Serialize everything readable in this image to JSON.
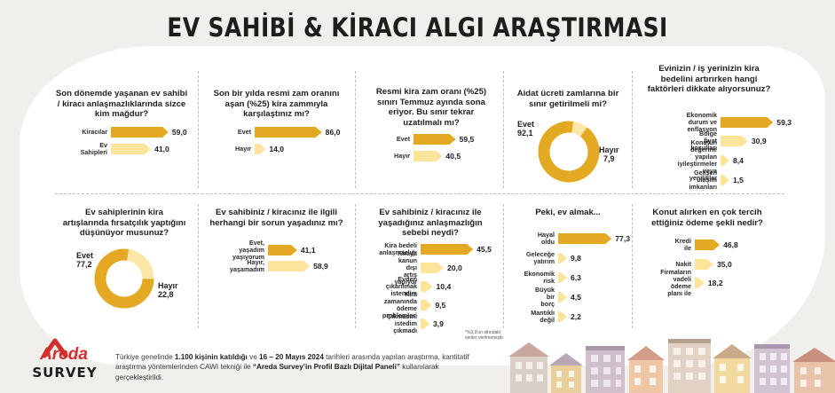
{
  "title": "EV SAHİBİ & KİRACI ALGI ARAŞTIRMASI",
  "colors": {
    "dark": "#e3a923",
    "light": "#fce49a",
    "donut_light": "#fde7a8"
  },
  "chart_data": [
    {
      "type": "bar",
      "title": "Son dönemde yaşanan ev sahibi / kiracı anlaşmazlıklarında sizce kim mağdur?",
      "categories": [
        "Kiracılar",
        "Ev Sahipleri"
      ],
      "values": [
        59.0,
        41.0
      ],
      "labels": [
        "59,0",
        "41,0"
      ],
      "xlim": [
        0,
        100
      ]
    },
    {
      "type": "bar",
      "title": "Son bir yılda resmi zam oranını aşan (%25) kira zammıyla karşılaştınız mı?",
      "categories": [
        "Evet",
        "Hayır"
      ],
      "values": [
        86.0,
        14.0
      ],
      "labels": [
        "86,0",
        "14,0"
      ],
      "xlim": [
        0,
        100
      ]
    },
    {
      "type": "bar",
      "title": "Resmi kira zam oranı (%25) sınırı Temmuz ayında sona eriyor. Bu sınır tekrar uzatılmalı mı?",
      "categories": [
        "Evet",
        "Hayır"
      ],
      "values": [
        59.5,
        40.5
      ],
      "labels": [
        "59,5",
        "40,5"
      ],
      "xlim": [
        0,
        100
      ]
    },
    {
      "type": "pie",
      "title": "Aidat ücreti zamlarına bir sınır getirilmeli mi?",
      "categories": [
        "Evet",
        "Hayır"
      ],
      "values": [
        92.1,
        7.9
      ],
      "labels": [
        "92,1",
        "7,9"
      ]
    },
    {
      "type": "bar",
      "title": "Evinizin / iş yerinizin kira bedelini artırırken hangi faktörleri dikkate alıyorsunuz?",
      "categories": [
        "Ekonomik durum ve enflasyon",
        "Bölge fiyat koşulları",
        "Konutun değerine yapılan iyileştirmeler veya yenilikler",
        "Gelişen ulaşım imkanları"
      ],
      "values": [
        59.3,
        30.9,
        8.4,
        1.5
      ],
      "labels": [
        "59,3",
        "30,9",
        "8,4",
        "1,5"
      ],
      "xlim": [
        0,
        100
      ]
    },
    {
      "type": "pie",
      "title": "Ev sahiplerinin kira artışlarında fırsatçılık yaptığını düşünüyor musunuz?",
      "categories": [
        "Evet",
        "Hayır"
      ],
      "values": [
        77.2,
        22.8
      ],
      "labels": [
        "77,2",
        "22,8"
      ]
    },
    {
      "type": "bar",
      "title": "Ev sahibiniz / kiracınız ile ilgili herhangi bir sorun yaşadınız mı?",
      "categories": [
        "Evet, yaşadım yaşıyorum",
        "Hayır, yaşamadım"
      ],
      "values": [
        41.1,
        58.9
      ],
      "labels": [
        "41,1",
        "58,9"
      ],
      "xlim": [
        0,
        100
      ]
    },
    {
      "type": "bar",
      "title": "Ev sahibiniz / kiracınız ile yaşadığınız anlaşmazlığın sebebi neydi?",
      "categories": [
        "Kira bedeli anlaşmazlığı",
        "Kiraya kanun dışı artış yapıyor",
        "Evden çıkarılmak istendim",
        "Kira zamanında ödeme problemleri",
        "Çıkmasını istedim çıkmadı"
      ],
      "values": [
        45.5,
        20.0,
        10.4,
        9.5,
        3.9
      ],
      "labels": [
        "45,5",
        "20,0",
        "10,4",
        "9,5",
        "3,9"
      ],
      "note": "*%3,9'un altındaki veriler verilmemiştir.",
      "xlim": [
        0,
        100
      ]
    },
    {
      "type": "bar",
      "title": "Peki, ev almak...",
      "categories": [
        "Hayal oldu",
        "Geleceğe yatırım",
        "Ekonomik risk",
        "Büyük bir borç",
        "Mantıklı değil"
      ],
      "values": [
        77.3,
        9.8,
        6.3,
        4.5,
        2.2
      ],
      "labels": [
        "77,3",
        "9,8",
        "6,3",
        "4,5",
        "2,2"
      ],
      "xlim": [
        0,
        100
      ]
    },
    {
      "type": "bar",
      "title": "Konut alırken en çok tercih ettiğiniz ödeme şekli nedir?",
      "categories": [
        "Kredi ile",
        "Nakit",
        "Firmaların vadeli ödeme planı ile"
      ],
      "values": [
        46.8,
        35.0,
        18.2
      ],
      "labels": [
        "46,8",
        "35,0",
        "18,2"
      ],
      "xlim": [
        0,
        100
      ]
    }
  ],
  "footer": {
    "p1": "Türkiye genelinde ",
    "b1": "1.100 kişinin katıldığı",
    "p2": " ve ",
    "b2": "16 – 20 Mayıs 2024",
    "p3": " tarihleri arasında yapılan araştırma, kantitatif araştırma yöntemlerinden CAWI tekniği ile ",
    "b3": "“Areda Survey’in Profil Bazlı Dijital Paneli”",
    "p4": " kullanılarak gerçekleştirildi."
  },
  "logo": {
    "top": "Areda",
    "bottom": "SURVEY"
  }
}
